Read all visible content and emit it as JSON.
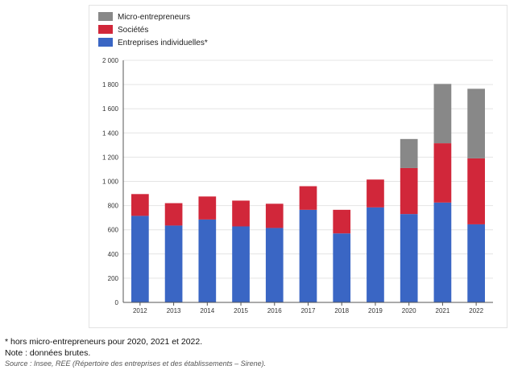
{
  "chart_data": {
    "type": "bar",
    "stacked": true,
    "categories": [
      "2012",
      "2013",
      "2014",
      "2015",
      "2016",
      "2017",
      "2018",
      "2019",
      "2020",
      "2021",
      "2022"
    ],
    "series": [
      {
        "name": "Entreprises individuelles*",
        "color": "#3a66c4",
        "values": [
          715,
          635,
          685,
          628,
          615,
          765,
          570,
          785,
          730,
          825,
          645
        ]
      },
      {
        "name": "Sociétés",
        "color": "#d1273a",
        "values": [
          180,
          185,
          190,
          213,
          200,
          195,
          195,
          230,
          380,
          490,
          545
        ]
      },
      {
        "name": "Micro-entrepreneurs",
        "color": "#888888",
        "values": [
          0,
          0,
          0,
          0,
          0,
          0,
          0,
          0,
          240,
          490,
          575
        ]
      }
    ],
    "legend_order": [
      "Micro-entrepreneurs",
      "Sociétés",
      "Entreprises individuelles*"
    ],
    "legend_position": "top-left",
    "ylim": [
      0,
      2000
    ],
    "yticks": [
      0,
      200,
      400,
      600,
      800,
      1000,
      1200,
      1400,
      1600,
      1800,
      2000
    ],
    "ytick_labels": [
      "0",
      "200",
      "400",
      "600",
      "800",
      "1 000",
      "1 200",
      "1 400",
      "1 600",
      "1 800",
      "2 000"
    ],
    "grid": "horizontal",
    "title": "",
    "xlabel": "",
    "ylabel": ""
  },
  "notes": [
    "* hors micro-entrepreneurs pour 2020, 2021 et 2022.",
    "Note : données brutes."
  ],
  "source": "Source : Insee, REE (Répertoire des entreprises et des établissements – Sirene)."
}
